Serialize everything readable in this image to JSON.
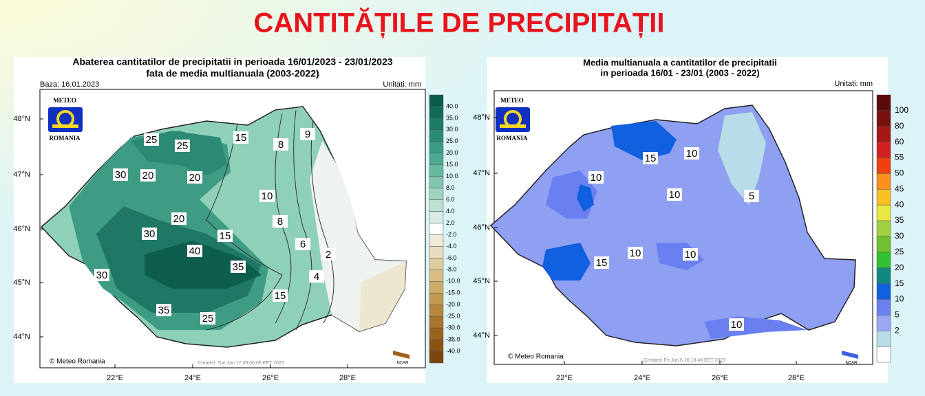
{
  "header": {
    "title": "CANTITĂȚILE DE PRECIPITAȚII"
  },
  "maps": [
    {
      "title_lines": [
        "Abaterea cantitatilor de precipitatii in perioada 16/01/2023 - 23/01/2023",
        "fata de media multianuala (2003-2022)"
      ],
      "base": "Baza: 16.01.2023",
      "units": "Unitati: mm",
      "logo": [
        "METEO",
        "ROMANIA"
      ],
      "lat_labels": [
        "48°N",
        "47°N",
        "46°N",
        "45°N",
        "44°N"
      ],
      "lon_labels": [
        "22°E",
        "24°E",
        "26°E",
        "28°E"
      ],
      "contour_labels": [
        "25",
        "25",
        "15",
        "9",
        "8",
        "30",
        "20",
        "20",
        "10",
        "8",
        "20",
        "30",
        "15",
        "6",
        "2",
        "40",
        "35",
        "4",
        "30",
        "15",
        "35",
        "25"
      ],
      "legend": {
        "labels": [
          "40.0",
          "35.0",
          "30.0",
          "25.0",
          "20.0",
          "15.0",
          "10.0",
          "8.0",
          "6.0",
          "4.0",
          "2.0",
          "-2.0",
          "-4.0",
          "-6.0",
          "-8.0",
          "-10.0",
          "-15.0",
          "-20.0",
          "-25.0",
          "-30.0",
          "-35.0",
          "-40.0"
        ],
        "colors": [
          "#0b5c4c",
          "#136a58",
          "#1d7a66",
          "#2a8a74",
          "#3a9a82",
          "#4fa990",
          "#66b89f",
          "#80c6ae",
          "#9dd3bf",
          "#bde0d3",
          "#d9ebe4",
          "#ffffff",
          "#f2ead8",
          "#e8dcbc",
          "#dfcd9f",
          "#d6bd83",
          "#ccac68",
          "#c19a50",
          "#b5873c",
          "#a8752b",
          "#99631e",
          "#8a5314",
          "#7a450c"
        ]
      },
      "credit": "© Meteo Romania",
      "created": "Created: Tue Jan 17 06:00:06 EET 2023",
      "ncar": "NCAR"
    },
    {
      "title_lines": [
        "Media multianuala a cantitatilor de precipitatii",
        "in perioada 16/01 - 23/01 (2003 - 2022)"
      ],
      "units": "Unitati: mm",
      "logo": [
        "METEO",
        "ROMANIA"
      ],
      "lat_labels": [
        "48°N",
        "47°N",
        "46°N",
        "45°N",
        "44°N"
      ],
      "lon_labels": [
        "22°E",
        "24°E",
        "26°E",
        "28°E"
      ],
      "contour_labels": [
        "15",
        "10",
        "10",
        "10",
        "5",
        "15",
        "10",
        "10",
        "10"
      ],
      "legend": {
        "labels": [
          "100",
          "80",
          "60",
          "55",
          "50",
          "45",
          "40",
          "35",
          "30",
          "25",
          "20",
          "15",
          "10",
          "5",
          "2"
        ],
        "colors": [
          "#5a0a0a",
          "#7a1010",
          "#a51818",
          "#d42020",
          "#f04010",
          "#f8901a",
          "#f8c020",
          "#e8e840",
          "#a0d040",
          "#70c030",
          "#30c030",
          "#108880",
          "#1060e0",
          "#6a7ff0",
          "#9aa8f4",
          "#b8dce8",
          "#ffffff"
        ]
      },
      "credit": "© Meteo Romania",
      "created": "Created: Fri Jan  6 16:18:48 EET 2023",
      "ncar": "NCAR"
    }
  ]
}
